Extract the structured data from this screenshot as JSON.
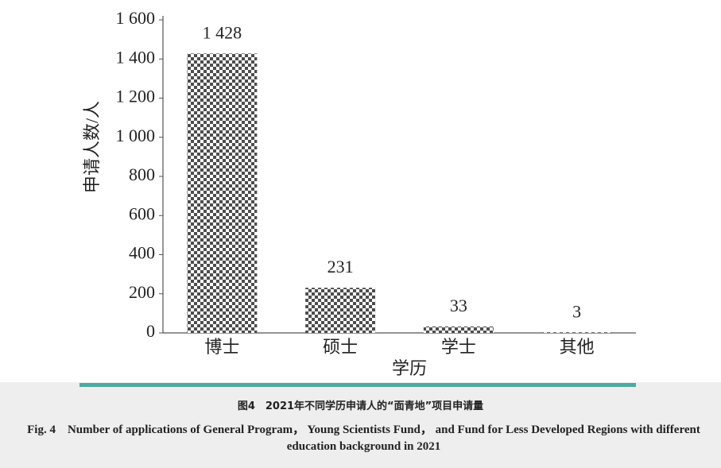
{
  "chart_data": {
    "type": "bar",
    "x_label": "学历",
    "y_label": "申请人数/人",
    "categories": [
      "博士",
      "硕士",
      "学士",
      "其他"
    ],
    "values": [
      1428,
      231,
      33,
      3
    ],
    "value_labels": [
      "1 428",
      "231",
      "33",
      "3"
    ],
    "color": "#4d4d4d",
    "ylim": [
      0,
      1600
    ],
    "yticks": [
      0,
      200,
      400,
      600,
      800,
      {
        "value": 1000,
        "label": "1 000"
      },
      {
        "value": 1200,
        "label": "1 200"
      },
      {
        "value": 1400,
        "label": "1 400"
      },
      {
        "value": 1600,
        "label": "1 600"
      }
    ],
    "grid": false
  },
  "caption": {
    "cn": "图4　2021年不同学历申请人的“面青地”项目申请量",
    "en": "Fig. 4　Number of applications of General Program， Young Scientists Fund， and Fund for Less Developed Regions with different education background in 2021"
  }
}
